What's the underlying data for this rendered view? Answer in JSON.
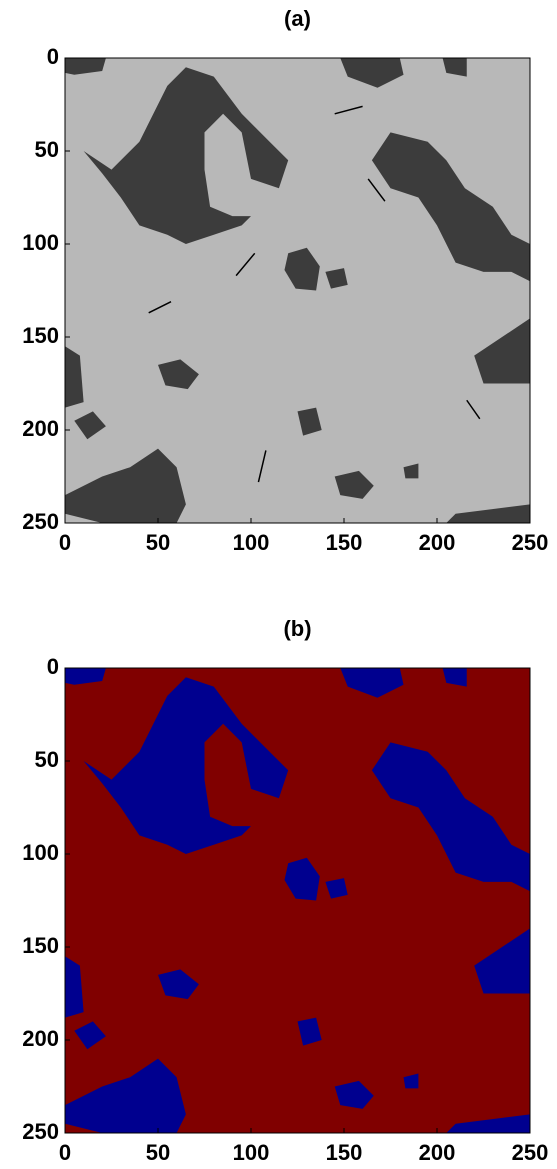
{
  "chart_data": [
    {
      "type": "image",
      "title": "(a)",
      "xlim": [
        0,
        250
      ],
      "ylim": [
        250,
        0
      ],
      "xticks": [
        0,
        50,
        100,
        150,
        200,
        250
      ],
      "yticks": [
        0,
        50,
        100,
        150,
        200,
        250
      ]
    },
    {
      "type": "image",
      "title": "(b)",
      "xlim": [
        0,
        250
      ],
      "ylim": [
        250,
        0
      ],
      "xticks": [
        0,
        50,
        100,
        150,
        200,
        250
      ],
      "yticks": [
        0,
        50,
        100,
        150,
        200,
        250
      ]
    }
  ]
}
